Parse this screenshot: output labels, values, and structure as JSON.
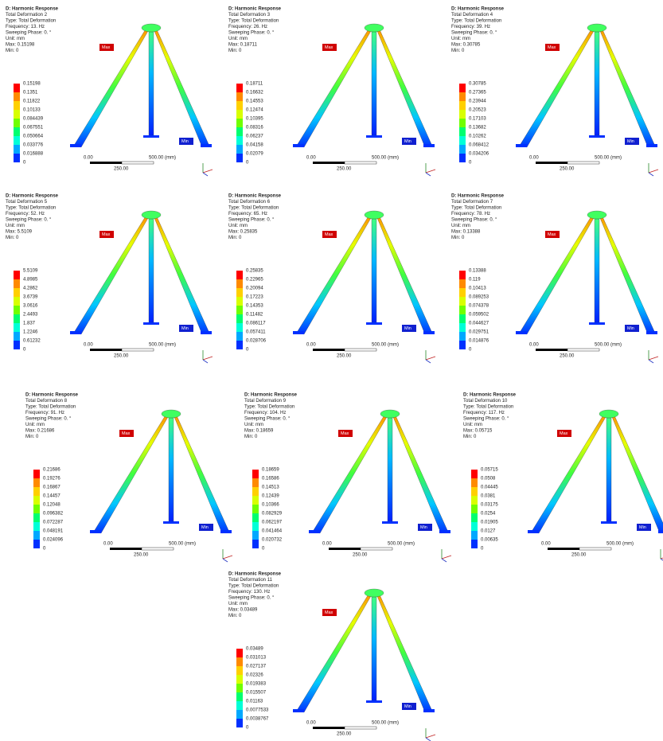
{
  "panels": [
    {
      "title": "D: Harmonic Response",
      "deformation": "Total Deformation 2",
      "type": "Type: Total Deformation",
      "frequency": "Frequency: 13. Hz",
      "phase": "Sweeping Phase: 0. °",
      "unit": "Unit: mm",
      "max": "Max: 0.15198",
      "min": "Min: 0",
      "legend": [
        "0.15198",
        "0.1351",
        "0.11822",
        "0.10133",
        "0.084439",
        "0.067551",
        "0.050664",
        "0.033776",
        "0.016888",
        "0"
      ],
      "max_tag": "Max",
      "min_tag": "Min",
      "scale_start": "0.00",
      "scale_end": "500.00 (mm)",
      "scale_mid": "250.00"
    },
    {
      "title": "D: Harmonic Response",
      "deformation": "Total Deformation 3",
      "type": "Type: Total Deformation",
      "frequency": "Frequency: 26. Hz",
      "phase": "Sweeping Phase: 0. °",
      "unit": "Unit: mm",
      "max": "Max: 0.18711",
      "min": "Min: 0",
      "legend": [
        "0.18711",
        "0.16632",
        "0.14553",
        "0.12474",
        "0.10395",
        "0.08316",
        "0.06237",
        "0.04158",
        "0.02079",
        "0"
      ],
      "max_tag": "Max",
      "min_tag": "Min",
      "scale_start": "0.00",
      "scale_end": "500.00 (mm)",
      "scale_mid": "250.00"
    },
    {
      "title": "D: Harmonic Response",
      "deformation": "Total Deformation 4",
      "type": "Type: Total Deformation",
      "frequency": "Frequency: 39. Hz",
      "phase": "Sweeping Phase: 0. °",
      "unit": "Unit: mm",
      "max": "Max: 0.30785",
      "min": "Min: 0",
      "legend": [
        "0.30785",
        "0.27365",
        "0.23944",
        "0.20523",
        "0.17103",
        "0.13682",
        "0.10262",
        "0.068412",
        "0.034206",
        "0"
      ],
      "max_tag": "Max",
      "min_tag": "Min",
      "scale_start": "0.00",
      "scale_end": "500.00 (mm)",
      "scale_mid": "250.00"
    },
    {
      "title": "D: Harmonic Response",
      "deformation": "Total Deformation 5",
      "type": "Type: Total Deformation",
      "frequency": "Frequency: 52. Hz",
      "phase": "Sweeping Phase: 0. °",
      "unit": "Unit: mm",
      "max": "Max: 5.5109",
      "min": "Min: 0",
      "legend": [
        "5.5109",
        "4.8985",
        "4.2862",
        "3.6739",
        "3.0616",
        "2.4493",
        "1.837",
        "1.2246",
        "0.61232",
        "0"
      ],
      "max_tag": "Max",
      "min_tag": "Min",
      "scale_start": "0.00",
      "scale_end": "500.00 (mm)",
      "scale_mid": "250.00"
    },
    {
      "title": "D: Harmonic Response",
      "deformation": "Total Deformation 6",
      "type": "Type: Total Deformation",
      "frequency": "Frequency: 65. Hz",
      "phase": "Sweeping Phase: 0. °",
      "unit": "Unit: mm",
      "max": "Max: 0.25835",
      "min": "Min: 0",
      "legend": [
        "0.25835",
        "0.22965",
        "0.20094",
        "0.17223",
        "0.14353",
        "0.11482",
        "0.086117",
        "0.057411",
        "0.028706",
        "0"
      ],
      "max_tag": "Max",
      "min_tag": "Min",
      "scale_start": "0.00",
      "scale_end": "500.00 (mm)",
      "scale_mid": "250.00"
    },
    {
      "title": "D: Harmonic Response",
      "deformation": "Total Deformation 7",
      "type": "Type: Total Deformation",
      "frequency": "Frequency: 78. Hz",
      "phase": "Sweeping Phase: 0. °",
      "unit": "Unit: mm",
      "max": "Max: 0.13388",
      "min": "Min: 0",
      "legend": [
        "0.13388",
        "0.119",
        "0.10413",
        "0.089253",
        "0.074378",
        "0.059502",
        "0.044627",
        "0.029751",
        "0.014876",
        "0"
      ],
      "max_tag": "Max",
      "min_tag": "Min",
      "scale_start": "0.00",
      "scale_end": "500.00 (mm)",
      "scale_mid": "250.00"
    },
    {
      "title": "D: Harmonic Response",
      "deformation": "Total Deformation 8",
      "type": "Type: Total Deformation",
      "frequency": "Frequency: 91. Hz",
      "phase": "Sweeping Phase: 0. °",
      "unit": "Unit: mm",
      "max": "Max: 0.21686",
      "min": "Min: 0",
      "legend": [
        "0.21686",
        "0.19276",
        "0.16867",
        "0.14457",
        "0.12048",
        "0.096382",
        "0.072287",
        "0.048191",
        "0.024096",
        "0"
      ],
      "max_tag": "Max",
      "min_tag": "Min",
      "scale_start": "0.00",
      "scale_end": "500.00 (mm)",
      "scale_mid": "250.00"
    },
    {
      "title": "D: Harmonic Response",
      "deformation": "Total Deformation 9",
      "type": "Type: Total Deformation",
      "frequency": "Frequency: 104. Hz",
      "phase": "Sweeping Phase: 0. °",
      "unit": "Unit: mm",
      "max": "Max: 0.18659",
      "min": "Min: 0",
      "legend": [
        "0.18659",
        "0.16586",
        "0.14513",
        "0.12439",
        "0.10366",
        "0.082929",
        "0.062197",
        "0.041464",
        "0.020732",
        "0"
      ],
      "max_tag": "Max",
      "min_tag": "Min",
      "scale_start": "0.00",
      "scale_end": "500.00 (mm)",
      "scale_mid": "250.00"
    },
    {
      "title": "D: Harmonic Response",
      "deformation": "Total Deformation 10",
      "type": "Type: Total Deformation",
      "frequency": "Frequency: 117. Hz",
      "phase": "Sweeping Phase: 0. °",
      "unit": "Unit: mm",
      "max": "Max: 0.05715",
      "min": "Min: 0",
      "legend": [
        "0.05715",
        "0.0508",
        "0.04445",
        "0.0381",
        "0.03175",
        "0.0254",
        "0.01905",
        "0.0127",
        "0.00635",
        "0"
      ],
      "max_tag": "Max",
      "min_tag": "Min",
      "scale_start": "0.00",
      "scale_end": "500.00 (mm)",
      "scale_mid": "250.00"
    },
    {
      "title": "D: Harmonic Response",
      "deformation": "Total Deformation 11",
      "type": "Type: Total Deformation",
      "frequency": "Frequency: 130. Hz",
      "phase": "Sweeping Phase: 0. °",
      "unit": "Unit: mm",
      "max": "Max: 0.03489",
      "min": "Min: 0",
      "legend": [
        "0.03489",
        "0.031013",
        "0.027137",
        "0.02326",
        "0.019383",
        "0.015507",
        "0.01163",
        "0.0077533",
        "0.0038767",
        "0"
      ],
      "max_tag": "Max",
      "min_tag": "Min",
      "scale_start": "0.00",
      "scale_end": "500.00 (mm)",
      "scale_mid": "250.00"
    }
  ]
}
